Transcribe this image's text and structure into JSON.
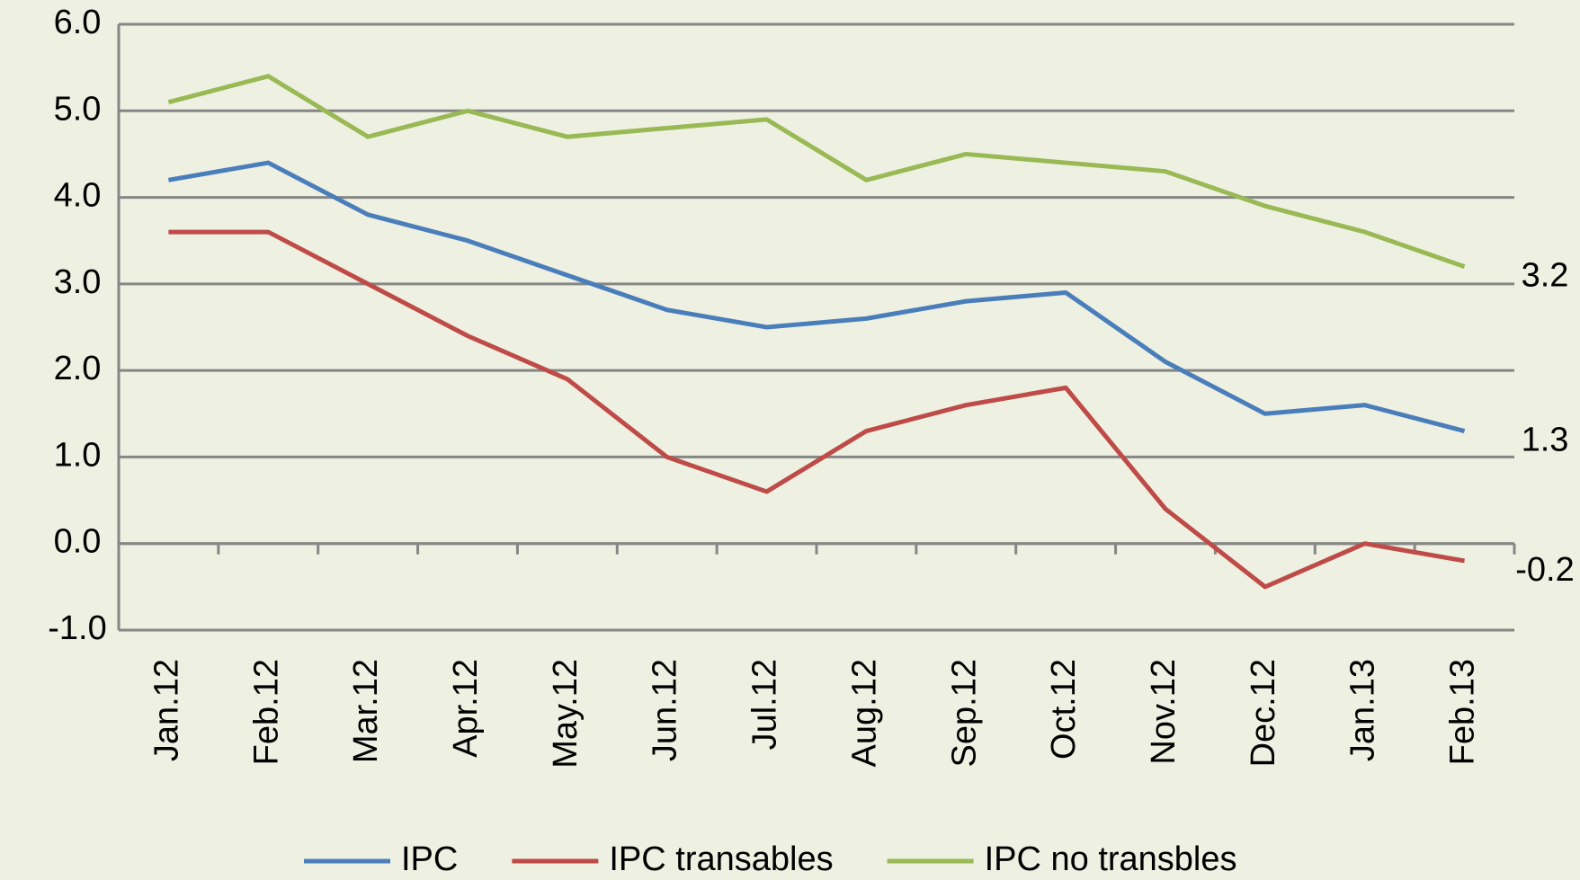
{
  "chart_data": {
    "type": "line",
    "categories": [
      "Jan.12",
      "Feb.12",
      "Mar.12",
      "Apr.12",
      "May.12",
      "Jun.12",
      "Jul.12",
      "Aug.12",
      "Sep.12",
      "Oct.12",
      "Nov.12",
      "Dec.12",
      "Jan.13",
      "Feb.13"
    ],
    "series": [
      {
        "name": "IPC",
        "color": "#4a7ebb",
        "values": [
          4.2,
          4.4,
          3.8,
          3.5,
          3.1,
          2.7,
          2.5,
          2.6,
          2.8,
          2.9,
          2.1,
          1.5,
          1.6,
          1.3
        ]
      },
      {
        "name": "IPC transables",
        "color": "#be4b48",
        "values": [
          3.6,
          3.6,
          3.0,
          2.4,
          1.9,
          1.0,
          0.6,
          1.3,
          1.6,
          1.8,
          0.4,
          -0.5,
          0.0,
          -0.2
        ]
      },
      {
        "name": "IPC no transbles",
        "color": "#98b954",
        "values": [
          5.1,
          5.4,
          4.7,
          5.0,
          4.7,
          4.8,
          4.9,
          4.2,
          4.5,
          4.4,
          4.3,
          3.9,
          3.6,
          3.2
        ]
      }
    ],
    "ylim": [
      -1,
      6
    ],
    "yticks": [
      {
        "value": -1,
        "label": "-1.0"
      },
      {
        "value": 0,
        "label": "0.0"
      },
      {
        "value": 1,
        "label": "1.0"
      },
      {
        "value": 2,
        "label": "2.0"
      },
      {
        "value": 3,
        "label": "3.0"
      },
      {
        "value": 4,
        "label": "4.0"
      },
      {
        "value": 5,
        "label": "5.0"
      },
      {
        "value": 6,
        "label": "6.0"
      }
    ],
    "grid": true,
    "legend": "bottom",
    "end_labels": true
  }
}
